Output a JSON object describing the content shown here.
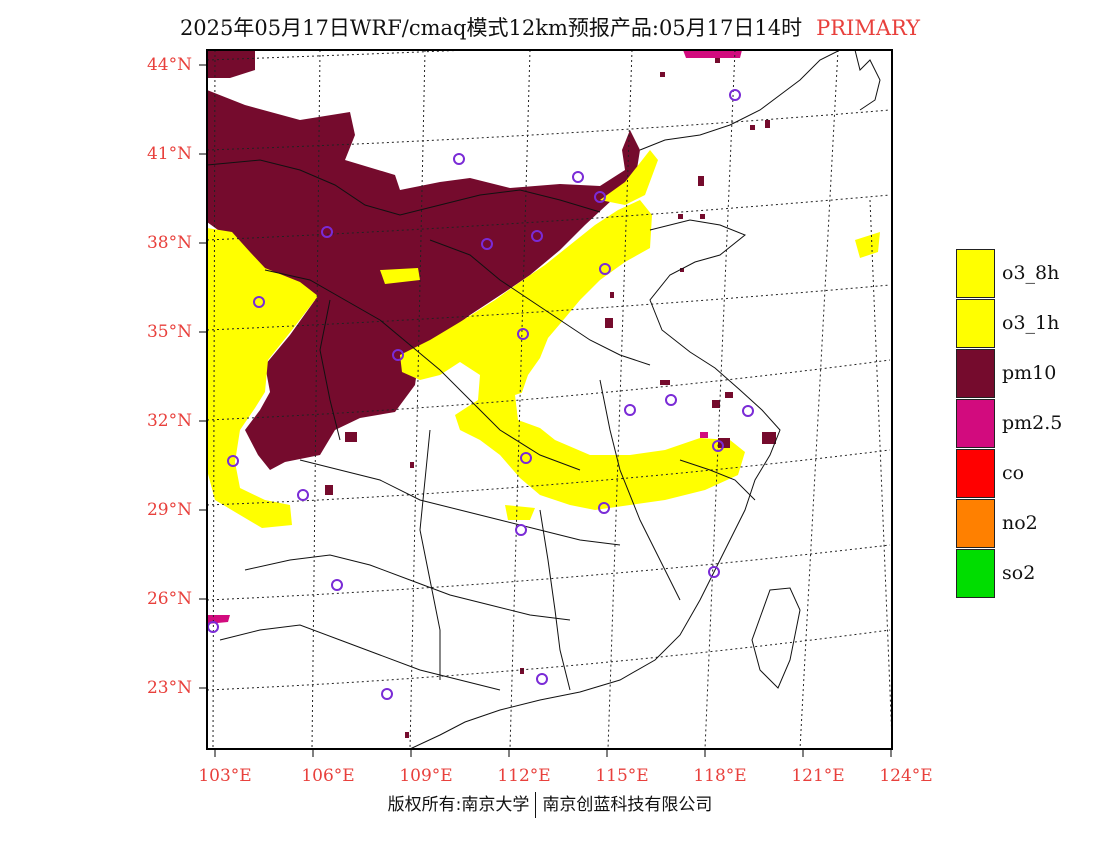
{
  "header": {
    "title": "2025年05月17日WRF/cmaq模式12km预报产品:05月17日14时",
    "tag": "PRIMARY"
  },
  "map": {
    "lat_labels": [
      "44°N",
      "41°N",
      "38°N",
      "35°N",
      "32°N",
      "29°N",
      "26°N",
      "23°N"
    ],
    "lon_labels": [
      "103°E",
      "106°E",
      "109°E",
      "112°E",
      "115°E",
      "118°E",
      "121°E",
      "124°E"
    ],
    "colors": {
      "o3": "#ffff00",
      "pm10": "#750b2d",
      "pm25": "#d20b7e",
      "station": "#7a2bd6"
    }
  },
  "legend": {
    "items": [
      {
        "label": "o3_8h",
        "color": "#ffff00"
      },
      {
        "label": "o3_1h",
        "color": "#ffff00"
      },
      {
        "label": "pm10",
        "color": "#750b2d"
      },
      {
        "label": "pm2.5",
        "color": "#d20b7e"
      },
      {
        "label": "co",
        "color": "#ff0000"
      },
      {
        "label": "no2",
        "color": "#ff8000"
      },
      {
        "label": "so2",
        "color": "#00dd00"
      }
    ]
  },
  "footer": {
    "left": "版权所有:南京大学",
    "right": "南京创蓝科技有限公司"
  }
}
